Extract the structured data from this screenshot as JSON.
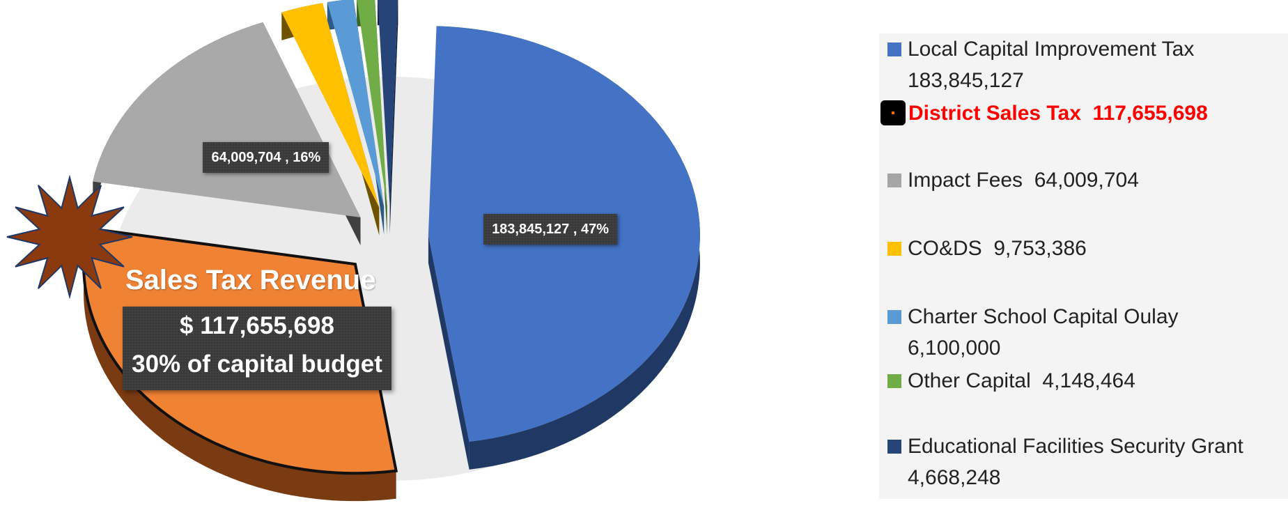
{
  "chart_data": {
    "type": "pie",
    "title": "",
    "slices": [
      {
        "label": "Local Capital Improvement Tax",
        "value": 183845127,
        "color": "#4472c4",
        "side_color": "#1f3864",
        "data_label": "183,845,127 , 47%"
      },
      {
        "label": "District Sales Tax",
        "value": 117655698,
        "color": "#f08234",
        "side_color": "#7a3a12",
        "data_label": ""
      },
      {
        "label": "Impact Fees",
        "value": 64009704,
        "color": "#a9a9a9",
        "side_color": "#404040",
        "data_label": "64,009,704 , 16%"
      },
      {
        "label": "CO&DS",
        "value": 9753386,
        "color": "#ffc000",
        "side_color": "#6e5200",
        "data_label": ""
      },
      {
        "label": "Charter School Capital Oulay",
        "value": 6100000,
        "color": "#5b9bd5",
        "side_color": "#2c5a84",
        "data_label": ""
      },
      {
        "label": "Other Capital",
        "value": 4148464,
        "color": "#70ad47",
        "side_color": "#3a6424",
        "data_label": ""
      },
      {
        "label": "Educational Facilities Security Grant",
        "value": 4668248,
        "color": "#264478",
        "side_color": "#13223c",
        "data_label": ""
      }
    ],
    "legend_position": "right"
  },
  "legend": [
    {
      "label": "Local Capital Improvement Tax",
      "value": "183,845,127",
      "color": "#4472c4",
      "wrap": true
    },
    {
      "label": "District Sales Tax  ",
      "value": "117,655,698",
      "color": "#000000",
      "wrap": false,
      "highlight": true
    },
    {
      "label": "Impact Fees  ",
      "value": "64,009,704",
      "color": "#a5a5a5",
      "wrap": false
    },
    {
      "label": "CO&DS  ",
      "value": "9,753,386",
      "color": "#ffc000",
      "wrap": false
    },
    {
      "label": "Charter School Capital Oulay",
      "value": "6,100,000",
      "color": "#5b9bd5",
      "wrap": true
    },
    {
      "label": "Other Capital  ",
      "value": "4,148,464",
      "color": "#70ad47",
      "wrap": false
    },
    {
      "label": "Educational Facilities Security Grant",
      "value": "4,668,248",
      "color": "#264478",
      "wrap": true
    }
  ],
  "callout": {
    "title": "Sales Tax Revenue",
    "amount": "$ 117,655,698",
    "percent_text": "30% of capital budget"
  }
}
